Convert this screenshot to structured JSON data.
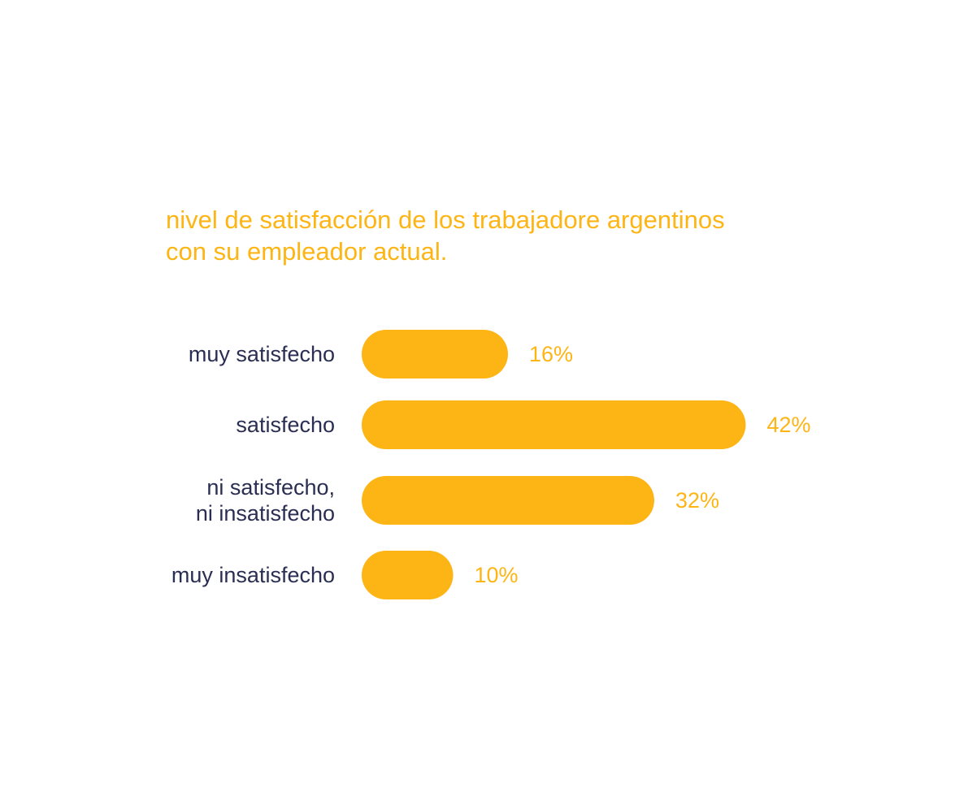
{
  "chart_data": {
    "type": "bar",
    "orientation": "horizontal",
    "title_lines": [
      "nivel de satisfacción de los trabajadore argentinos",
      "con su empleador actual."
    ],
    "categories": [
      [
        "muy satisfecho"
      ],
      [
        "satisfecho"
      ],
      [
        "ni satisfecho,",
        "ni insatisfecho"
      ],
      [
        "muy insatisfecho"
      ]
    ],
    "values": [
      16,
      42,
      32,
      10
    ],
    "value_labels": [
      "16%",
      "42%",
      "32%",
      "10%"
    ],
    "unit": "%",
    "grid": false,
    "legend": "none",
    "colors": {
      "bar": "#FDB515",
      "title": "#FDB515",
      "value_label": "#FDB515",
      "category_label": "#2A2E52"
    }
  }
}
